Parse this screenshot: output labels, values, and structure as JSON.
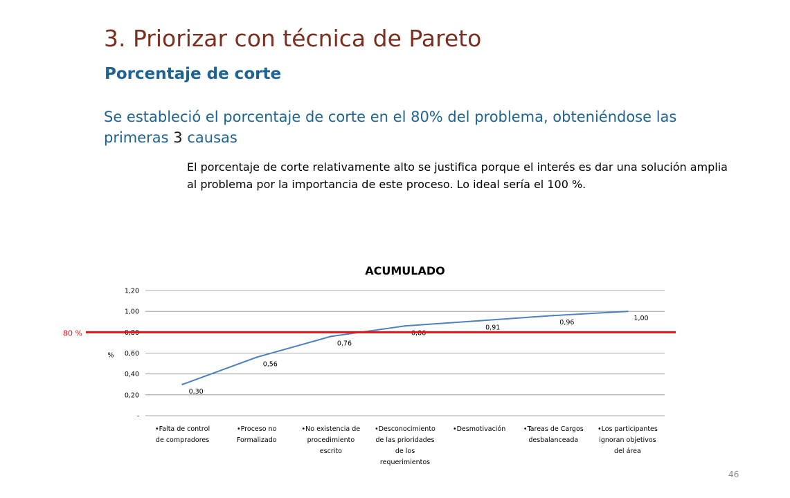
{
  "slide": {
    "title": "3. Priorizar con técnica de Pareto",
    "subtitle": "Porcentaje de corte",
    "lead_before": "Se estableció el porcentaje de corte en el 80% del problema, obteniéndose las primeras ",
    "lead_number": "3",
    "lead_after": " causas",
    "note": "El porcentaje de corte relativamente alto se justifica porque el interés es dar una solución amplia al problema por la importancia de este proceso. Lo ideal sería el 100 %.",
    "page_number": "46"
  },
  "colors": {
    "title": "#7a3020",
    "subtitle": "#1f6391",
    "line": "#4f81bd",
    "cut_line": "#e81010"
  },
  "chart_data": {
    "type": "line",
    "title": "ACUMULADO",
    "ylabel": "%",
    "xlabel": "",
    "ylim": [
      0,
      1.2
    ],
    "yticks": [
      0,
      0.2,
      0.4,
      0.6,
      0.8,
      1.0,
      1.2
    ],
    "ytick_labels": [
      "-",
      "0,20",
      "0,40",
      "0,60",
      "0,80",
      "1,00",
      "1,20"
    ],
    "grid": true,
    "categories": [
      [
        "•Falta de control",
        "de compradores"
      ],
      [
        "•Proceso no",
        "Formalizado"
      ],
      [
        "•No existencia de",
        "procedimiento",
        "escrito"
      ],
      [
        "•Desconocimiento",
        "de las prioridades",
        "de los",
        "requerimientos"
      ],
      [
        "•Desmotivación"
      ],
      [
        "•Tareas de Cargos",
        "desbalanceada"
      ],
      [
        "•Los participantes",
        "ignoran objetivos",
        "del área"
      ]
    ],
    "values": [
      0.3,
      0.56,
      0.76,
      0.86,
      0.91,
      0.96,
      1.0
    ],
    "data_labels": [
      "0,30",
      "0,56",
      "0,76",
      "0,86",
      "0,91",
      "0,96",
      "1,00"
    ],
    "cut_line": {
      "value": 0.8,
      "label": "80 %"
    }
  }
}
